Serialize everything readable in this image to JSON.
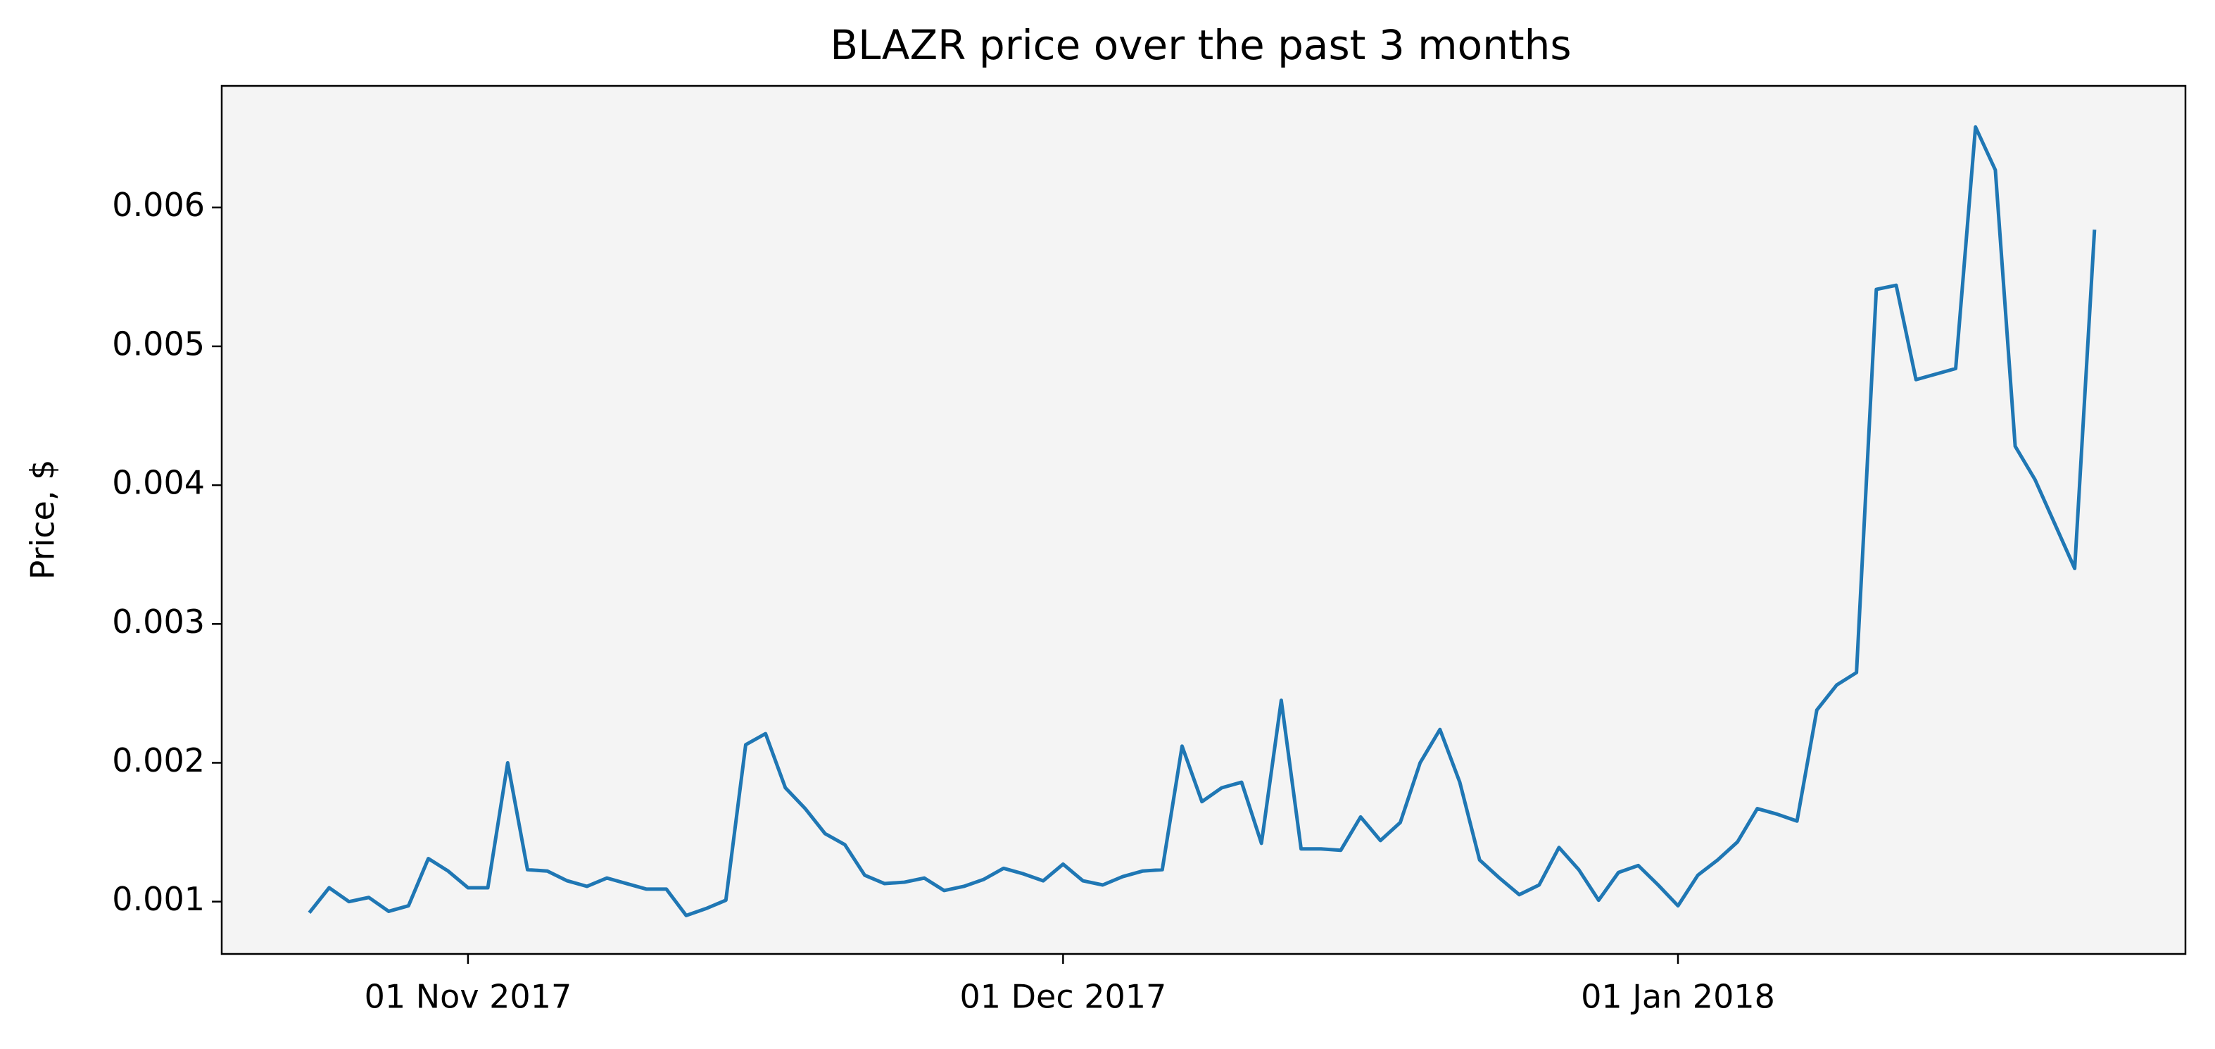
{
  "chart_data": {
    "type": "line",
    "title": "BLAZR price over the past 3 months",
    "y_label": "Price, $",
    "x": [
      "2017-10-24",
      "2017-10-25",
      "2017-10-26",
      "2017-10-27",
      "2017-10-28",
      "2017-10-29",
      "2017-10-30",
      "2017-10-31",
      "2017-11-01",
      "2017-11-02",
      "2017-11-03",
      "2017-11-04",
      "2017-11-05",
      "2017-11-06",
      "2017-11-07",
      "2017-11-08",
      "2017-11-09",
      "2017-11-10",
      "2017-11-11",
      "2017-11-12",
      "2017-11-13",
      "2017-11-14",
      "2017-11-15",
      "2017-11-16",
      "2017-11-17",
      "2017-11-18",
      "2017-11-19",
      "2017-11-20",
      "2017-11-21",
      "2017-11-22",
      "2017-11-23",
      "2017-11-24",
      "2017-11-25",
      "2017-11-26",
      "2017-11-27",
      "2017-11-28",
      "2017-11-29",
      "2017-11-30",
      "2017-12-01",
      "2017-12-02",
      "2017-12-03",
      "2017-12-04",
      "2017-12-05",
      "2017-12-06",
      "2017-12-07",
      "2017-12-08",
      "2017-12-09",
      "2017-12-10",
      "2017-12-11",
      "2017-12-12",
      "2017-12-13",
      "2017-12-14",
      "2017-12-15",
      "2017-12-16",
      "2017-12-17",
      "2017-12-18",
      "2017-12-19",
      "2017-12-20",
      "2017-12-21",
      "2017-12-22",
      "2017-12-23",
      "2017-12-24",
      "2017-12-25",
      "2017-12-26",
      "2017-12-27",
      "2017-12-28",
      "2017-12-29",
      "2017-12-30",
      "2017-12-31",
      "2018-01-01",
      "2018-01-02",
      "2018-01-03",
      "2018-01-04",
      "2018-01-05",
      "2018-01-06",
      "2018-01-07",
      "2018-01-08",
      "2018-01-09",
      "2018-01-10",
      "2018-01-11",
      "2018-01-12",
      "2018-01-13",
      "2018-01-14",
      "2018-01-15",
      "2018-01-16",
      "2018-01-17",
      "2018-01-18",
      "2018-01-19",
      "2018-01-20",
      "2018-01-21",
      "2018-01-22"
    ],
    "series": [
      {
        "color": "#1f77b4",
        "values": [
          0.00092,
          0.0011,
          0.001,
          0.00103,
          0.00093,
          0.00097,
          0.00131,
          0.00122,
          0.0011,
          0.0011,
          0.002,
          0.00123,
          0.00122,
          0.00115,
          0.00111,
          0.00117,
          0.00113,
          0.00109,
          0.00109,
          0.0009,
          0.00095,
          0.00101,
          0.00213,
          0.00221,
          0.00182,
          0.00167,
          0.00149,
          0.00141,
          0.00119,
          0.00113,
          0.00114,
          0.00117,
          0.00108,
          0.00111,
          0.00116,
          0.00124,
          0.0012,
          0.00115,
          0.00127,
          0.00115,
          0.00112,
          0.00118,
          0.00122,
          0.00123,
          0.00212,
          0.00172,
          0.00182,
          0.00186,
          0.00142,
          0.00245,
          0.00138,
          0.00138,
          0.00137,
          0.00161,
          0.00144,
          0.00157,
          0.002,
          0.00224,
          0.00186,
          0.0013,
          0.00117,
          0.00105,
          0.00112,
          0.00139,
          0.00123,
          0.00101,
          0.00121,
          0.00126,
          0.00112,
          0.00097,
          0.00119,
          0.0013,
          0.00143,
          0.00167,
          0.00163,
          0.00158,
          0.00238,
          0.00256,
          0.00265,
          0.00541,
          0.00544,
          0.00476,
          0.0048,
          0.00484,
          0.00658,
          0.00627,
          0.00428,
          0.00404,
          0.00372,
          0.0034,
          0.00584
        ]
      }
    ],
    "xlim": [
      "2017-10-19T14:00:00Z",
      "2018-01-26T14:00:00Z"
    ],
    "xticks": [
      {
        "value": "2017-11-01",
        "label": "01 Nov 2017"
      },
      {
        "value": "2017-12-01",
        "label": "01 Dec 2017"
      },
      {
        "value": "2018-01-01",
        "label": "01 Jan 2018"
      }
    ],
    "ylim": [
      0.000623,
      0.006876
    ],
    "yticks": [
      0.001,
      0.002,
      0.003,
      0.004,
      0.005,
      0.006
    ],
    "background": "#f4f4f4"
  }
}
